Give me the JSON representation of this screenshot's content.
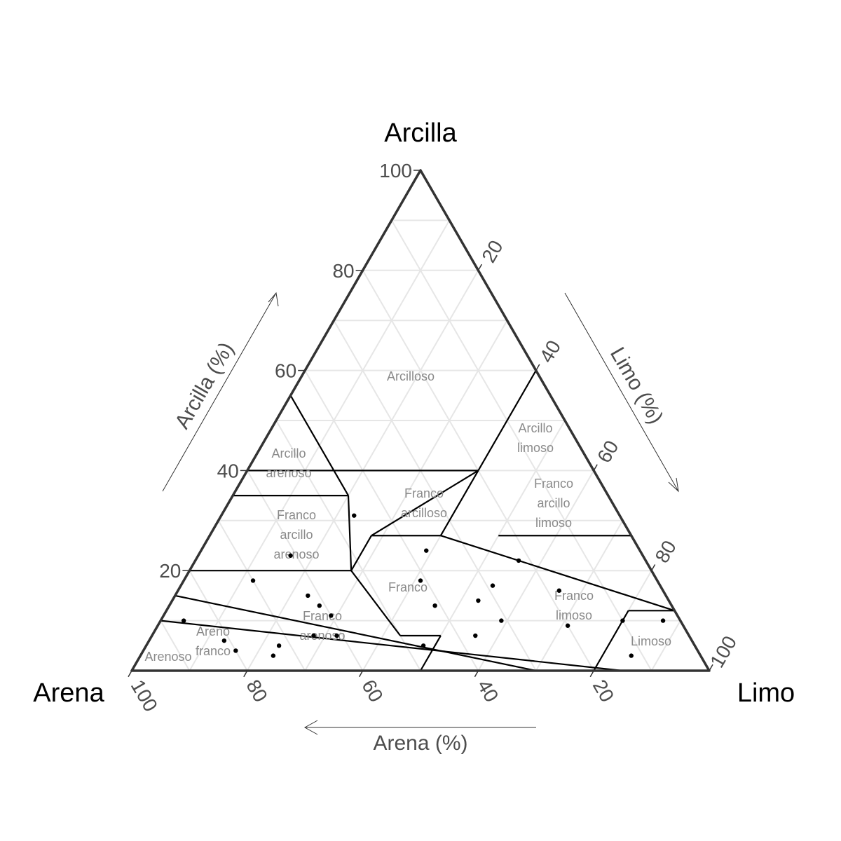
{
  "chart_data": {
    "type": "ternary-scatter",
    "vertices": {
      "top": "Arcilla",
      "left": "Arena",
      "right": "Limo"
    },
    "axis_titles": {
      "clay": "Arcilla (%)",
      "silt": "Limo (%)",
      "sand": "Arena (%)"
    },
    "ticks": {
      "clay": [
        "20",
        "40",
        "60",
        "80",
        "100"
      ],
      "silt": [
        "20",
        "40",
        "60",
        "80",
        "100"
      ],
      "sand": [
        "20",
        "40",
        "60",
        "80",
        "100"
      ]
    },
    "grid": true,
    "classes": [
      {
        "name": "Arcilloso",
        "lines": [
          "Arcilloso"
        ]
      },
      {
        "name": "Arcillo limoso",
        "lines": [
          "Arcillo",
          "limoso"
        ]
      },
      {
        "name": "Arcillo arenoso",
        "lines": [
          "Arcillo",
          "arenoso"
        ]
      },
      {
        "name": "Franco arcilloso",
        "lines": [
          "Franco",
          "arcilloso"
        ]
      },
      {
        "name": "Franco arcillo limoso",
        "lines": [
          "Franco",
          "arcillo",
          "limoso"
        ]
      },
      {
        "name": "Franco arcillo arenoso",
        "lines": [
          "Franco",
          "arcillo",
          "arenoso"
        ]
      },
      {
        "name": "Franco",
        "lines": [
          "Franco"
        ]
      },
      {
        "name": "Franco limoso",
        "lines": [
          "Franco",
          "limoso"
        ]
      },
      {
        "name": "Franco arenoso",
        "lines": [
          "Franco",
          "arenoso"
        ]
      },
      {
        "name": "Areno franco",
        "lines": [
          "Areno",
          "franco"
        ]
      },
      {
        "name": "Arenoso",
        "lines": [
          "Arenoso"
        ]
      },
      {
        "name": "Limoso",
        "lines": [
          "Limoso"
        ]
      }
    ],
    "points": [
      {
        "sand": 46,
        "silt": 23,
        "clay": 31
      },
      {
        "sand": 61,
        "silt": 16,
        "clay": 23
      },
      {
        "sand": 70,
        "silt": 12,
        "clay": 18
      },
      {
        "sand": 37,
        "silt": 39,
        "clay": 24
      },
      {
        "sand": 22,
        "silt": 56,
        "clay": 22
      },
      {
        "sand": 41,
        "silt": 41,
        "clay": 18
      },
      {
        "sand": 18,
        "silt": 66,
        "clay": 16
      },
      {
        "sand": 29,
        "silt": 54,
        "clay": 17
      },
      {
        "sand": 33,
        "silt": 53,
        "clay": 14
      },
      {
        "sand": 41,
        "silt": 46,
        "clay": 13
      },
      {
        "sand": 62,
        "silt": 23,
        "clay": 15
      },
      {
        "sand": 61,
        "silt": 26,
        "clay": 13
      },
      {
        "sand": 60,
        "silt": 29,
        "clay": 11
      },
      {
        "sand": 31,
        "silt": 59,
        "clay": 10
      },
      {
        "sand": 20,
        "silt": 71,
        "clay": 9
      },
      {
        "sand": 37,
        "silt": 56,
        "clay": 7
      },
      {
        "sand": 65,
        "silt": 28,
        "clay": 7
      },
      {
        "sand": 61,
        "silt": 32,
        "clay": 7
      },
      {
        "sand": 72,
        "silt": 23,
        "clay": 5
      },
      {
        "sand": 74,
        "silt": 23,
        "clay": 3
      },
      {
        "sand": 47,
        "silt": 48,
        "clay": 5
      },
      {
        "sand": 86,
        "silt": 4,
        "clay": 10
      },
      {
        "sand": 81,
        "silt": 13,
        "clay": 6
      },
      {
        "sand": 80,
        "silt": 16,
        "clay": 4
      },
      {
        "sand": 10,
        "silt": 80,
        "clay": 10
      },
      {
        "sand": 3,
        "silt": 87,
        "clay": 10
      },
      {
        "sand": 12,
        "silt": 85,
        "clay": 3
      }
    ]
  }
}
